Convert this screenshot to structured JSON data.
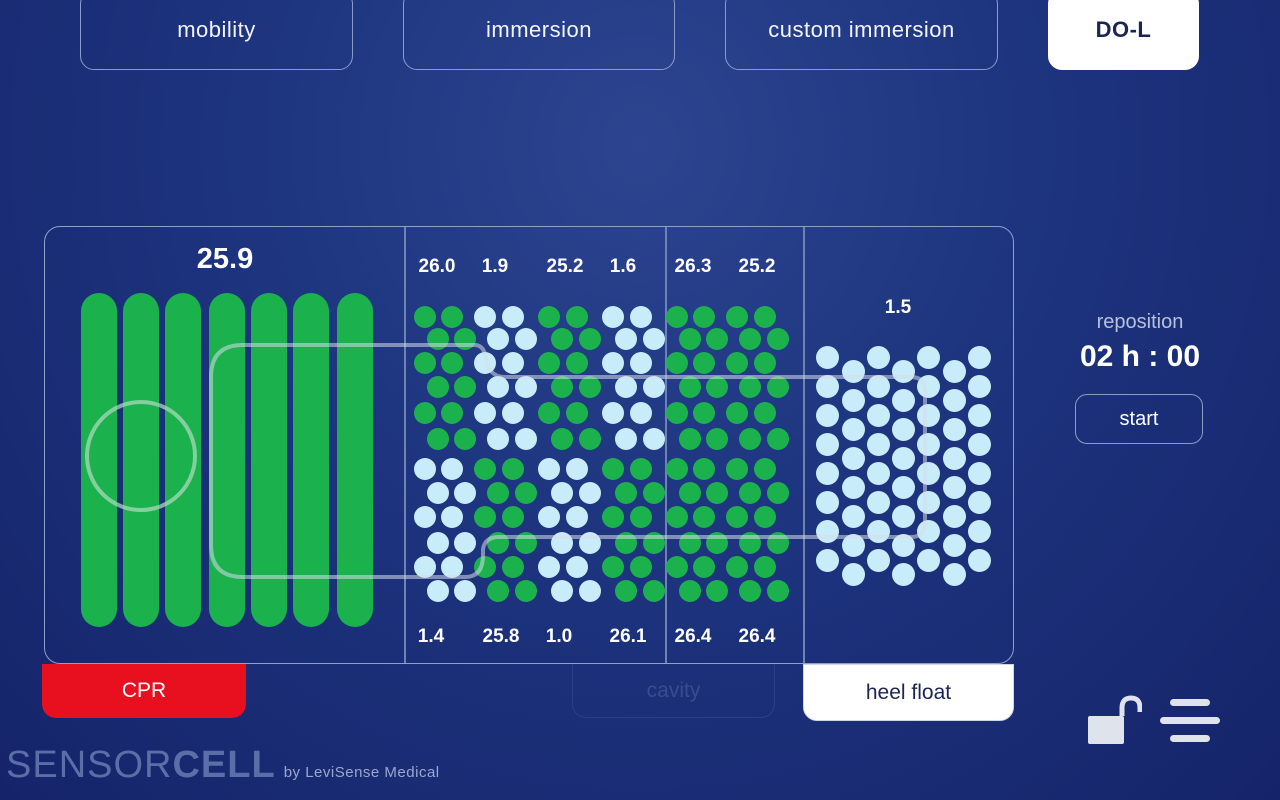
{
  "tabs": [
    {
      "label": "mobility",
      "active": false
    },
    {
      "label": "immersion",
      "active": false
    },
    {
      "label": "custom immersion",
      "active": false
    },
    {
      "label": "DO-L",
      "active": true
    }
  ],
  "zones": {
    "head": {
      "value": "25.9"
    },
    "top_values": [
      "26.0",
      "1.9",
      "25.2",
      "1.6",
      "26.3",
      "25.2"
    ],
    "bottom_values": [
      "1.4",
      "25.8",
      "1.0",
      "26.1",
      "26.4",
      "26.4"
    ],
    "heel": {
      "value": "1.5"
    }
  },
  "modes": {
    "cpr": "CPR",
    "cavity": "cavity",
    "heel_float": "heel float"
  },
  "reposition": {
    "label": "reposition",
    "time": "02 h : 00",
    "start_label": "start"
  },
  "brand": {
    "sensor": "SENSOR",
    "cell": "CELL",
    "by": "by LeviSense Medical"
  },
  "colors": {
    "inflated": "#1bb24e",
    "deflated": "#c9ecfb",
    "cpr": "#e8101e",
    "background": "#1e3580"
  },
  "icons": {
    "lock": "unlocked-padlock-icon",
    "menu": "hamburger-menu-icon"
  }
}
